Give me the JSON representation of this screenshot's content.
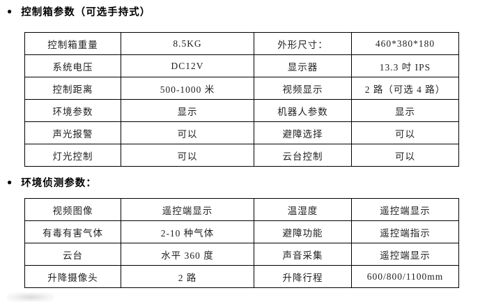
{
  "page": {
    "background": "#ffffff",
    "text_color": "#1f1f1f",
    "table_border_color": "#000000"
  },
  "sections": [
    {
      "bullet": "●",
      "heading": "控制箱参数（可选手持式）",
      "table": {
        "rows": [
          [
            "控制箱重量",
            "8.5KG",
            "外形尺寸：",
            "460*380*180"
          ],
          [
            "系统电压",
            "DC12V",
            "显示器",
            "13.3 吋 IPS"
          ],
          [
            "控制距离",
            "500-1000 米",
            "视频显示",
            "2 路（可选 4 路）"
          ],
          [
            "环境参数",
            "显示",
            "机器人参数",
            "显示"
          ],
          [
            "声光报警",
            "可以",
            "避障选择",
            "可以"
          ],
          [
            "灯光控制",
            "可以",
            "云台控制",
            "可以"
          ]
        ]
      }
    },
    {
      "bullet": "●",
      "heading": "环境侦测参数：",
      "table": {
        "rows": [
          [
            "视频图像",
            "遥控端显示",
            "温湿度",
            "遥控端显示"
          ],
          [
            "有毒有害气体",
            "2-10 种气体",
            "避障功能",
            "遥控端指示"
          ],
          [
            "云台",
            "水平 360 度",
            "声音采集",
            "遥控端显示"
          ],
          [
            "升降摄像头",
            "2 路",
            "升降行程",
            "600/800/1100mm"
          ]
        ]
      }
    }
  ]
}
